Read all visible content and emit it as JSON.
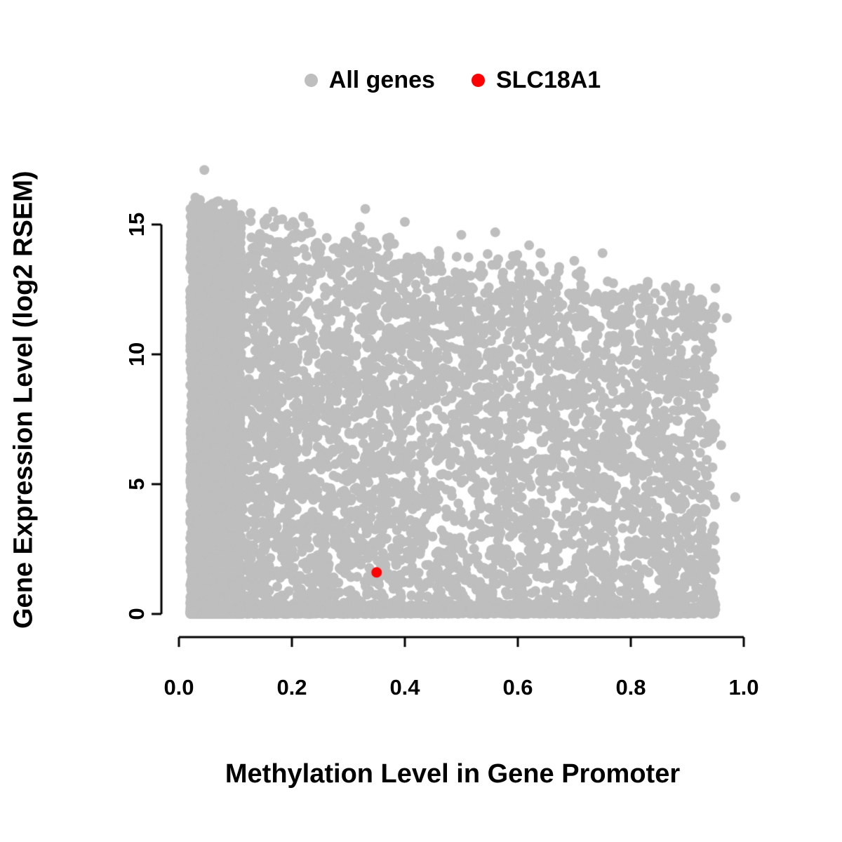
{
  "page": {
    "background": "#FFFFFF"
  },
  "chart_data": {
    "type": "scatter",
    "title": "",
    "xlabel": "Methylation Level in Gene Promoter",
    "ylabel": "Gene Expression Level (log2 RSEM)",
    "xlim": [
      0.0,
      1.0
    ],
    "ylim": [
      0,
      17.5
    ],
    "xticks": [
      0.0,
      0.2,
      0.4,
      0.6,
      0.8,
      1.0
    ],
    "xtick_labels": [
      "0.0",
      "0.2",
      "0.4",
      "0.6",
      "0.8",
      "1.0"
    ],
    "yticks": [
      0,
      5,
      10,
      15
    ],
    "ytick_labels": [
      "0",
      "5",
      "10",
      "15"
    ],
    "grid": false,
    "axis_color": "#000000",
    "text_color": "#000000",
    "legend": {
      "position": "top-center",
      "entries": [
        {
          "label": "All genes",
          "color": "#BEBEBE"
        },
        {
          "label": "SLC18A1",
          "color": "#FF0000"
        }
      ]
    },
    "series": [
      {
        "name": "All genes",
        "color": "#BEBEBE",
        "marker": "filled-circle",
        "point_radius_px": 7,
        "cloud": {
          "n_points": 11000,
          "seed": 42,
          "x_min": 0.02,
          "x_max": 0.95,
          "x_power": 1.25,
          "dense_column": {
            "fraction": 0.38,
            "x_min": 0.02,
            "x_max": 0.11
          },
          "upper_envelope": {
            "intercept": 15.2,
            "slope": -3.8,
            "noise": [
              -0.2,
              1.0
            ]
          },
          "bottom_band": {
            "fraction": 0.22,
            "y_max": 0.5
          },
          "y_power": 1.05
        },
        "extra_points": [
          [
            0.045,
            17.1
          ],
          [
            0.07,
            15.9
          ],
          [
            0.025,
            15.6
          ],
          [
            0.095,
            15.5
          ],
          [
            0.22,
            15.3
          ],
          [
            0.33,
            15.6
          ],
          [
            0.4,
            15.1
          ],
          [
            0.5,
            14.6
          ],
          [
            0.56,
            14.7
          ],
          [
            0.62,
            14.2
          ],
          [
            0.64,
            13.9
          ],
          [
            0.7,
            13.6
          ],
          [
            0.75,
            13.9
          ],
          [
            0.83,
            12.8
          ],
          [
            0.87,
            12.4
          ],
          [
            0.91,
            12.1
          ],
          [
            0.93,
            10.9
          ],
          [
            0.95,
            11.5
          ],
          [
            0.97,
            11.4
          ],
          [
            0.96,
            6.5
          ],
          [
            0.985,
            4.5
          ]
        ]
      },
      {
        "name": "SLC18A1",
        "color": "#FF0000",
        "marker": "filled-circle",
        "point_radius_px": 7.5,
        "points": [
          [
            0.35,
            1.6
          ]
        ]
      }
    ],
    "highlight_point": {
      "gene": "SLC18A1",
      "x": 0.35,
      "y": 1.6
    }
  }
}
